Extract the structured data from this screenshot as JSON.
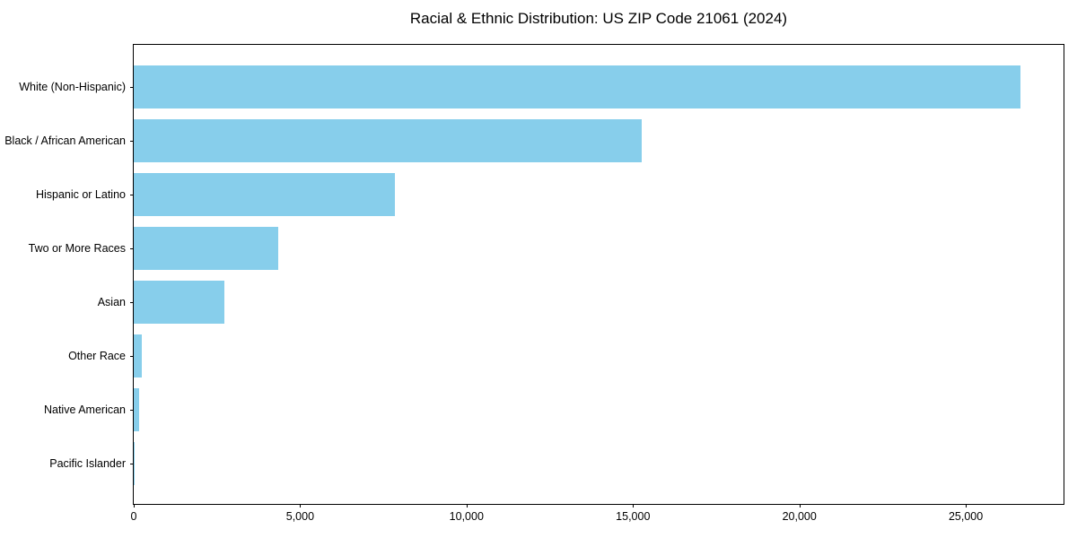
{
  "title": "Racial & Ethnic Distribution: US ZIP Code 21061 (2024)",
  "colors": {
    "bar": "#87CEEB",
    "frame": "#000000",
    "text": "#000000",
    "background": "#ffffff"
  },
  "chart_data": {
    "type": "bar",
    "orientation": "horizontal",
    "title": "Racial & Ethnic Distribution: US ZIP Code 21061 (2024)",
    "xlabel": "",
    "ylabel": "",
    "categories": [
      "White (Non-Hispanic)",
      "Black / African American",
      "Hispanic or Latino",
      "Two or More Races",
      "Asian",
      "Other Race",
      "Native American",
      "Pacific Islander"
    ],
    "values": [
      26640,
      15260,
      7850,
      4340,
      2720,
      230,
      150,
      30
    ],
    "xlim": [
      0,
      27990
    ],
    "xticks": [
      0,
      5000,
      10000,
      15000,
      20000,
      25000
    ],
    "xtick_labels": [
      "0",
      "5,000",
      "10,000",
      "15,000",
      "20,000",
      "25,000"
    ],
    "grid": false,
    "legend": "none",
    "bar_color": "#87CEEB"
  }
}
